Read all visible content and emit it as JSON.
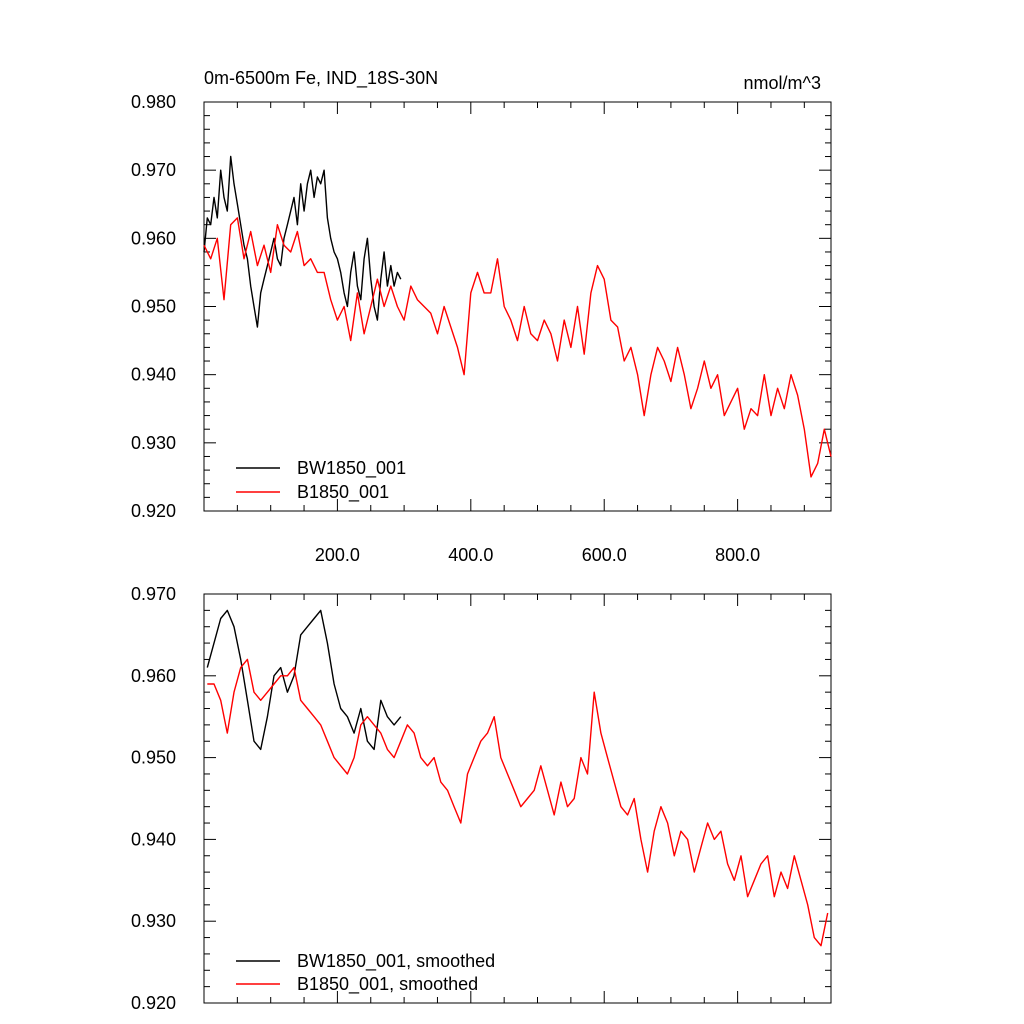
{
  "chart_data": [
    {
      "type": "line",
      "title": "0m-6500m Fe, IND_18S-30N",
      "units": "nmol/m^3",
      "xlim": [
        0,
        940
      ],
      "ylim": [
        0.92,
        0.98
      ],
      "x_ticks": [
        200,
        400,
        600,
        800
      ],
      "x_tick_labels": [
        "200.0",
        "400.0",
        "600.0",
        "800.0"
      ],
      "y_ticks": [
        0.92,
        0.93,
        0.94,
        0.95,
        0.96,
        0.97,
        0.98
      ],
      "y_tick_labels": [
        "0.920",
        "0.930",
        "0.940",
        "0.950",
        "0.960",
        "0.970",
        "0.980"
      ],
      "legend_position": "bottom-left",
      "series": [
        {
          "name": "BW1850_001",
          "color": "#000000",
          "x": [
            0,
            5,
            10,
            15,
            20,
            25,
            30,
            35,
            40,
            45,
            50,
            55,
            60,
            65,
            70,
            75,
            80,
            85,
            90,
            95,
            100,
            105,
            110,
            115,
            120,
            125,
            130,
            135,
            140,
            145,
            150,
            155,
            160,
            165,
            170,
            175,
            180,
            185,
            190,
            195,
            200,
            205,
            210,
            215,
            220,
            225,
            230,
            235,
            240,
            245,
            250,
            255,
            260,
            265,
            270,
            275,
            280,
            285,
            290,
            295
          ],
          "y": [
            0.958,
            0.963,
            0.962,
            0.966,
            0.963,
            0.97,
            0.966,
            0.964,
            0.972,
            0.968,
            0.965,
            0.962,
            0.959,
            0.957,
            0.953,
            0.95,
            0.947,
            0.952,
            0.954,
            0.956,
            0.958,
            0.96,
            0.957,
            0.956,
            0.96,
            0.962,
            0.964,
            0.966,
            0.962,
            0.968,
            0.964,
            0.968,
            0.97,
            0.966,
            0.969,
            0.968,
            0.97,
            0.963,
            0.96,
            0.958,
            0.957,
            0.955,
            0.952,
            0.95,
            0.955,
            0.958,
            0.953,
            0.951,
            0.957,
            0.96,
            0.954,
            0.95,
            0.948,
            0.954,
            0.958,
            0.953,
            0.956,
            0.953,
            0.955,
            0.954
          ]
        },
        {
          "name": "B1850_001",
          "color": "#ff0000",
          "x": [
            0,
            10,
            20,
            30,
            40,
            50,
            60,
            70,
            80,
            90,
            100,
            110,
            120,
            130,
            140,
            150,
            160,
            170,
            180,
            190,
            200,
            210,
            220,
            230,
            240,
            250,
            260,
            270,
            280,
            290,
            300,
            310,
            320,
            330,
            340,
            350,
            360,
            370,
            380,
            390,
            400,
            410,
            420,
            430,
            440,
            450,
            460,
            470,
            480,
            490,
            500,
            510,
            520,
            530,
            540,
            550,
            560,
            570,
            580,
            590,
            600,
            610,
            620,
            630,
            640,
            650,
            660,
            670,
            680,
            690,
            700,
            710,
            720,
            730,
            740,
            750,
            760,
            770,
            780,
            790,
            800,
            810,
            820,
            830,
            840,
            850,
            860,
            870,
            880,
            890,
            900,
            910,
            920,
            930,
            940
          ],
          "y": [
            0.959,
            0.957,
            0.96,
            0.951,
            0.962,
            0.963,
            0.957,
            0.961,
            0.956,
            0.959,
            0.955,
            0.962,
            0.959,
            0.958,
            0.961,
            0.956,
            0.957,
            0.955,
            0.955,
            0.951,
            0.948,
            0.95,
            0.945,
            0.952,
            0.946,
            0.95,
            0.954,
            0.95,
            0.953,
            0.95,
            0.948,
            0.953,
            0.951,
            0.95,
            0.949,
            0.946,
            0.95,
            0.947,
            0.944,
            0.94,
            0.952,
            0.955,
            0.952,
            0.952,
            0.957,
            0.95,
            0.948,
            0.945,
            0.95,
            0.946,
            0.945,
            0.948,
            0.946,
            0.942,
            0.948,
            0.944,
            0.95,
            0.943,
            0.952,
            0.956,
            0.954,
            0.948,
            0.947,
            0.942,
            0.944,
            0.94,
            0.934,
            0.94,
            0.944,
            0.942,
            0.939,
            0.944,
            0.94,
            0.935,
            0.938,
            0.942,
            0.938,
            0.94,
            0.934,
            0.936,
            0.938,
            0.932,
            0.935,
            0.934,
            0.94,
            0.934,
            0.938,
            0.935,
            0.94,
            0.937,
            0.932,
            0.925,
            0.927,
            0.932,
            0.928
          ]
        }
      ]
    },
    {
      "type": "line",
      "xlim": [
        0,
        940
      ],
      "ylim": [
        0.92,
        0.97
      ],
      "y_ticks": [
        0.92,
        0.93,
        0.94,
        0.95,
        0.96,
        0.97
      ],
      "y_tick_labels": [
        "0.920",
        "0.930",
        "0.940",
        "0.950",
        "0.960",
        "0.970"
      ],
      "legend_position": "bottom-left",
      "series": [
        {
          "name": "BW1850_001, smoothed",
          "color": "#000000",
          "x": [
            5,
            15,
            25,
            35,
            45,
            55,
            65,
            75,
            85,
            95,
            105,
            115,
            125,
            135,
            145,
            155,
            165,
            175,
            185,
            195,
            205,
            215,
            225,
            235,
            245,
            255,
            265,
            275,
            285,
            295
          ],
          "y": [
            0.961,
            0.964,
            0.967,
            0.968,
            0.966,
            0.962,
            0.957,
            0.952,
            0.951,
            0.955,
            0.96,
            0.961,
            0.958,
            0.96,
            0.965,
            0.966,
            0.967,
            0.968,
            0.964,
            0.959,
            0.956,
            0.955,
            0.953,
            0.956,
            0.952,
            0.951,
            0.957,
            0.955,
            0.954,
            0.955
          ]
        },
        {
          "name": "B1850_001, smoothed",
          "color": "#ff0000",
          "x": [
            5,
            15,
            25,
            35,
            45,
            55,
            65,
            75,
            85,
            95,
            105,
            115,
            125,
            135,
            145,
            155,
            165,
            175,
            185,
            195,
            205,
            215,
            225,
            235,
            245,
            255,
            265,
            275,
            285,
            295,
            305,
            315,
            325,
            335,
            345,
            355,
            365,
            375,
            385,
            395,
            405,
            415,
            425,
            435,
            445,
            455,
            465,
            475,
            485,
            495,
            505,
            515,
            525,
            535,
            545,
            555,
            565,
            575,
            585,
            595,
            605,
            615,
            625,
            635,
            645,
            655,
            665,
            675,
            685,
            695,
            705,
            715,
            725,
            735,
            745,
            755,
            765,
            775,
            785,
            795,
            805,
            815,
            825,
            835,
            845,
            855,
            865,
            875,
            885,
            895,
            905,
            915,
            925,
            935
          ],
          "y": [
            0.959,
            0.959,
            0.957,
            0.953,
            0.958,
            0.961,
            0.962,
            0.958,
            0.957,
            0.958,
            0.959,
            0.96,
            0.96,
            0.961,
            0.957,
            0.956,
            0.955,
            0.954,
            0.952,
            0.95,
            0.949,
            0.948,
            0.95,
            0.954,
            0.955,
            0.954,
            0.953,
            0.951,
            0.95,
            0.952,
            0.954,
            0.953,
            0.95,
            0.949,
            0.95,
            0.947,
            0.946,
            0.944,
            0.942,
            0.948,
            0.95,
            0.952,
            0.953,
            0.955,
            0.95,
            0.948,
            0.946,
            0.944,
            0.945,
            0.946,
            0.949,
            0.946,
            0.943,
            0.947,
            0.944,
            0.945,
            0.95,
            0.948,
            0.958,
            0.953,
            0.95,
            0.947,
            0.944,
            0.943,
            0.945,
            0.94,
            0.936,
            0.941,
            0.944,
            0.942,
            0.938,
            0.941,
            0.94,
            0.936,
            0.939,
            0.942,
            0.94,
            0.941,
            0.937,
            0.935,
            0.938,
            0.933,
            0.935,
            0.937,
            0.938,
            0.933,
            0.936,
            0.934,
            0.938,
            0.935,
            0.932,
            0.928,
            0.927,
            0.931
          ]
        }
      ]
    }
  ]
}
